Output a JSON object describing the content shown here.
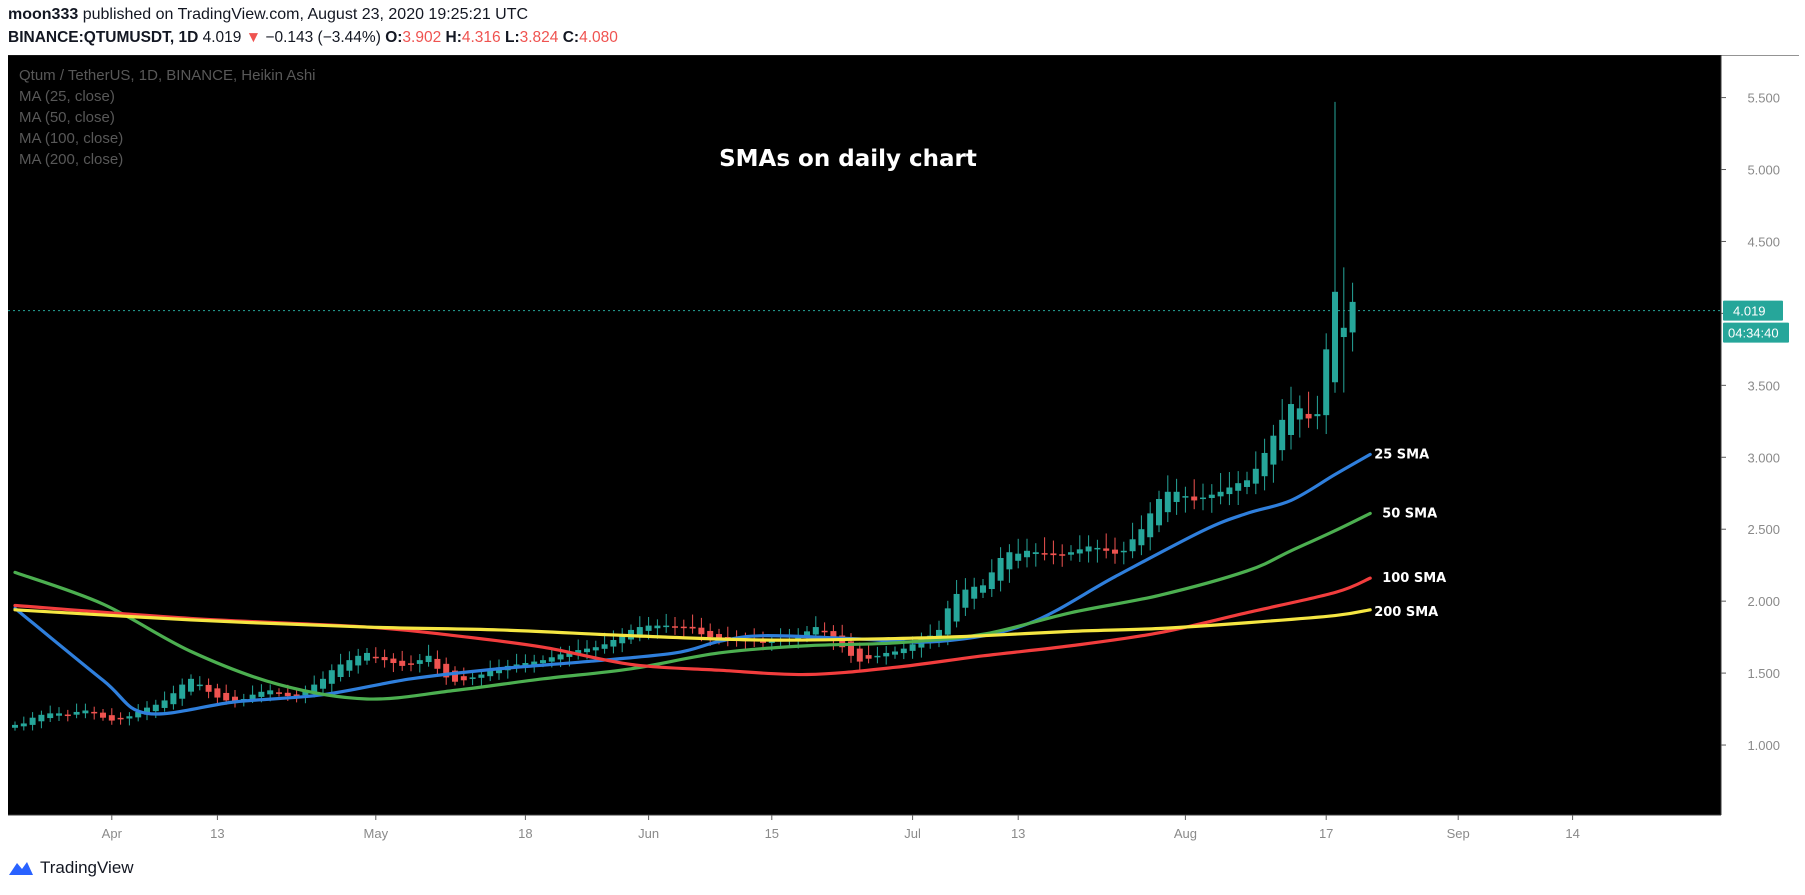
{
  "header": {
    "author": "moon333",
    "published_text": "published on TradingView.com, August 23, 2020 19:25:21 UTC",
    "symbol": "BINANCE:QTUMUSDT, 1D",
    "last": "4.019",
    "change": "−0.143 (−3.44%)",
    "o_label": "O:",
    "o_value": "3.902",
    "h_label": "H:",
    "h_value": "4.316",
    "l_label": "L:",
    "l_value": "3.824",
    "c_label": "C:",
    "c_value": "4.080"
  },
  "legend": {
    "title": "Qtum / TetherUS, 1D, BINANCE, Heikin Ashi",
    "ma25": "MA (25, close)",
    "ma50": "MA (50, close)",
    "ma100": "MA (100, close)",
    "ma200": "MA (200, close)"
  },
  "footer": {
    "brand": "TradingView"
  },
  "colors": {
    "background": "#000000",
    "up": "#26a69a",
    "down": "#ef5350",
    "sma25": "#2f7fdc",
    "sma50": "#4caf50",
    "sma100": "#f23d3d",
    "sma200": "#f5e642",
    "price_label_bg": "#26a69a"
  },
  "chart_data": {
    "type": "candlestick",
    "title": "SMAs on daily chart",
    "xlabel": "",
    "ylabel": "",
    "ylim": [
      0.75,
      5.65
    ],
    "yticks": [
      1.0,
      1.5,
      2.0,
      2.5,
      3.0,
      3.5,
      4.0,
      4.5,
      5.0,
      5.5
    ],
    "ytick_labels": [
      "1.000",
      "1.500",
      "2.000",
      "2.500",
      "3.000",
      "3.500",
      "4.000",
      "4.500",
      "5.000",
      "5.500"
    ],
    "x_start": "2020-03-21",
    "xticks": [
      {
        "day": 11,
        "label": "Apr"
      },
      {
        "day": 23,
        "label": "13"
      },
      {
        "day": 41,
        "label": "May"
      },
      {
        "day": 58,
        "label": "18"
      },
      {
        "day": 72,
        "label": "Jun"
      },
      {
        "day": 86,
        "label": "15"
      },
      {
        "day": 102,
        "label": "Jul"
      },
      {
        "day": 114,
        "label": "13"
      },
      {
        "day": 133,
        "label": "Aug"
      },
      {
        "day": 149,
        "label": "17"
      },
      {
        "day": 164,
        "label": "Sep"
      },
      {
        "day": 177,
        "label": "14"
      }
    ],
    "last_price": 4.019,
    "last_price_label": "4.019",
    "countdown": "04:34:40",
    "closes": [
      1.14,
      1.15,
      1.19,
      1.21,
      1.22,
      1.22,
      1.21,
      1.23,
      1.24,
      1.22,
      1.19,
      1.17,
      1.18,
      1.2,
      1.23,
      1.26,
      1.28,
      1.31,
      1.36,
      1.42,
      1.46,
      1.42,
      1.37,
      1.33,
      1.31,
      1.3,
      1.32,
      1.35,
      1.37,
      1.38,
      1.36,
      1.34,
      1.34,
      1.38,
      1.42,
      1.46,
      1.52,
      1.56,
      1.59,
      1.62,
      1.64,
      1.61,
      1.59,
      1.57,
      1.55,
      1.56,
      1.59,
      1.62,
      1.53,
      1.47,
      1.44,
      1.45,
      1.47,
      1.49,
      1.52,
      1.54,
      1.55,
      1.56,
      1.57,
      1.58,
      1.59,
      1.61,
      1.63,
      1.65,
      1.66,
      1.67,
      1.68,
      1.7,
      1.73,
      1.76,
      1.8,
      1.82,
      1.83,
      1.83,
      1.83,
      1.82,
      1.82,
      1.81,
      1.77,
      1.75,
      1.73,
      1.73,
      1.74,
      1.73,
      1.72,
      1.71,
      1.72,
      1.73,
      1.74,
      1.76,
      1.79,
      1.82,
      1.79,
      1.73,
      1.68,
      1.62,
      1.58,
      1.6,
      1.62,
      1.64,
      1.65,
      1.67,
      1.7,
      1.74,
      1.76,
      1.8,
      1.95,
      2.05,
      2.08,
      2.1,
      2.11,
      2.2,
      2.3,
      2.34,
      2.33,
      2.35,
      2.34,
      2.33,
      2.32,
      2.32,
      2.34,
      2.36,
      2.38,
      2.37,
      2.35,
      2.33,
      2.35,
      2.43,
      2.5,
      2.61,
      2.71,
      2.76,
      2.76,
      2.73,
      2.7,
      2.72,
      2.74,
      2.76,
      2.79,
      2.82,
      2.84,
      2.92,
      3.03,
      3.15,
      3.26,
      3.37,
      3.34,
      3.27,
      3.3,
      3.75,
      4.15,
      3.9,
      4.08
    ],
    "wick_high_peak": 5.47,
    "series": [
      {
        "name": "25 SMA",
        "period": 25,
        "points": [
          [
            0,
            1.95
          ],
          [
            10,
            1.45
          ],
          [
            15,
            1.22
          ],
          [
            25,
            1.3
          ],
          [
            35,
            1.35
          ],
          [
            45,
            1.46
          ],
          [
            55,
            1.53
          ],
          [
            65,
            1.58
          ],
          [
            75,
            1.64
          ],
          [
            80,
            1.72
          ],
          [
            85,
            1.76
          ],
          [
            95,
            1.74
          ],
          [
            105,
            1.72
          ],
          [
            115,
            1.84
          ],
          [
            125,
            2.17
          ],
          [
            135,
            2.49
          ],
          [
            140,
            2.61
          ],
          [
            145,
            2.7
          ],
          [
            150,
            2.88
          ],
          [
            154,
            3.02
          ]
        ]
      },
      {
        "name": "50 SMA",
        "period": 50,
        "points": [
          [
            0,
            2.2
          ],
          [
            10,
            1.98
          ],
          [
            20,
            1.65
          ],
          [
            30,
            1.42
          ],
          [
            40,
            1.32
          ],
          [
            50,
            1.38
          ],
          [
            60,
            1.46
          ],
          [
            70,
            1.53
          ],
          [
            80,
            1.64
          ],
          [
            90,
            1.69
          ],
          [
            100,
            1.71
          ],
          [
            110,
            1.77
          ],
          [
            120,
            1.92
          ],
          [
            130,
            2.04
          ],
          [
            140,
            2.21
          ],
          [
            145,
            2.35
          ],
          [
            150,
            2.49
          ],
          [
            154,
            2.61
          ]
        ]
      },
      {
        "name": "100 SMA",
        "period": 100,
        "points": [
          [
            0,
            1.97
          ],
          [
            20,
            1.88
          ],
          [
            40,
            1.82
          ],
          [
            50,
            1.76
          ],
          [
            60,
            1.68
          ],
          [
            70,
            1.56
          ],
          [
            80,
            1.52
          ],
          [
            90,
            1.49
          ],
          [
            100,
            1.54
          ],
          [
            110,
            1.62
          ],
          [
            120,
            1.69
          ],
          [
            130,
            1.78
          ],
          [
            140,
            1.92
          ],
          [
            150,
            2.06
          ],
          [
            154,
            2.16
          ]
        ]
      },
      {
        "name": "200 SMA",
        "period": 200,
        "points": [
          [
            0,
            1.94
          ],
          [
            20,
            1.87
          ],
          [
            40,
            1.82
          ],
          [
            55,
            1.8
          ],
          [
            70,
            1.76
          ],
          [
            85,
            1.73
          ],
          [
            100,
            1.74
          ],
          [
            110,
            1.76
          ],
          [
            120,
            1.79
          ],
          [
            130,
            1.81
          ],
          [
            140,
            1.85
          ],
          [
            150,
            1.9
          ],
          [
            154,
            1.94
          ]
        ]
      }
    ]
  }
}
